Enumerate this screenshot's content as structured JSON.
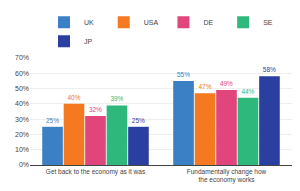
{
  "chart_data": {
    "type": "bar",
    "categories": [
      "Get back to the economy as it was",
      "Fundamentally change how\nthe economy works"
    ],
    "series": [
      {
        "name": "UK",
        "color": "#3b7fc4",
        "values": [
          25,
          55
        ],
        "value_labels": [
          "25%",
          "55%"
        ]
      },
      {
        "name": "USA",
        "color": "#f47920",
        "values": [
          40,
          47
        ],
        "value_labels": [
          "40%",
          "47%"
        ]
      },
      {
        "name": "DE",
        "color": "#e0457b",
        "values": [
          32,
          49
        ],
        "value_labels": [
          "32%",
          "49%"
        ]
      },
      {
        "name": "SE",
        "color": "#2eb87c",
        "values": [
          39,
          44
        ],
        "value_labels": [
          "39%",
          "44%"
        ]
      },
      {
        "name": "JP",
        "color": "#2b3fa0",
        "values": [
          25,
          58
        ],
        "value_labels": [
          "25%",
          "58%"
        ]
      }
    ],
    "ylim": [
      0,
      70
    ],
    "yticks": [
      {
        "value": 0,
        "label": "0%"
      },
      {
        "value": 10,
        "label": "10%"
      },
      {
        "value": 20,
        "label": "20%"
      },
      {
        "value": 30,
        "label": "30%"
      },
      {
        "value": 40,
        "label": "40%"
      },
      {
        "value": 50,
        "label": "50%"
      },
      {
        "value": 60,
        "label": "60%"
      },
      {
        "value": 70,
        "label": "70%"
      }
    ],
    "grid": true,
    "data_labels": true,
    "legend": "top"
  }
}
